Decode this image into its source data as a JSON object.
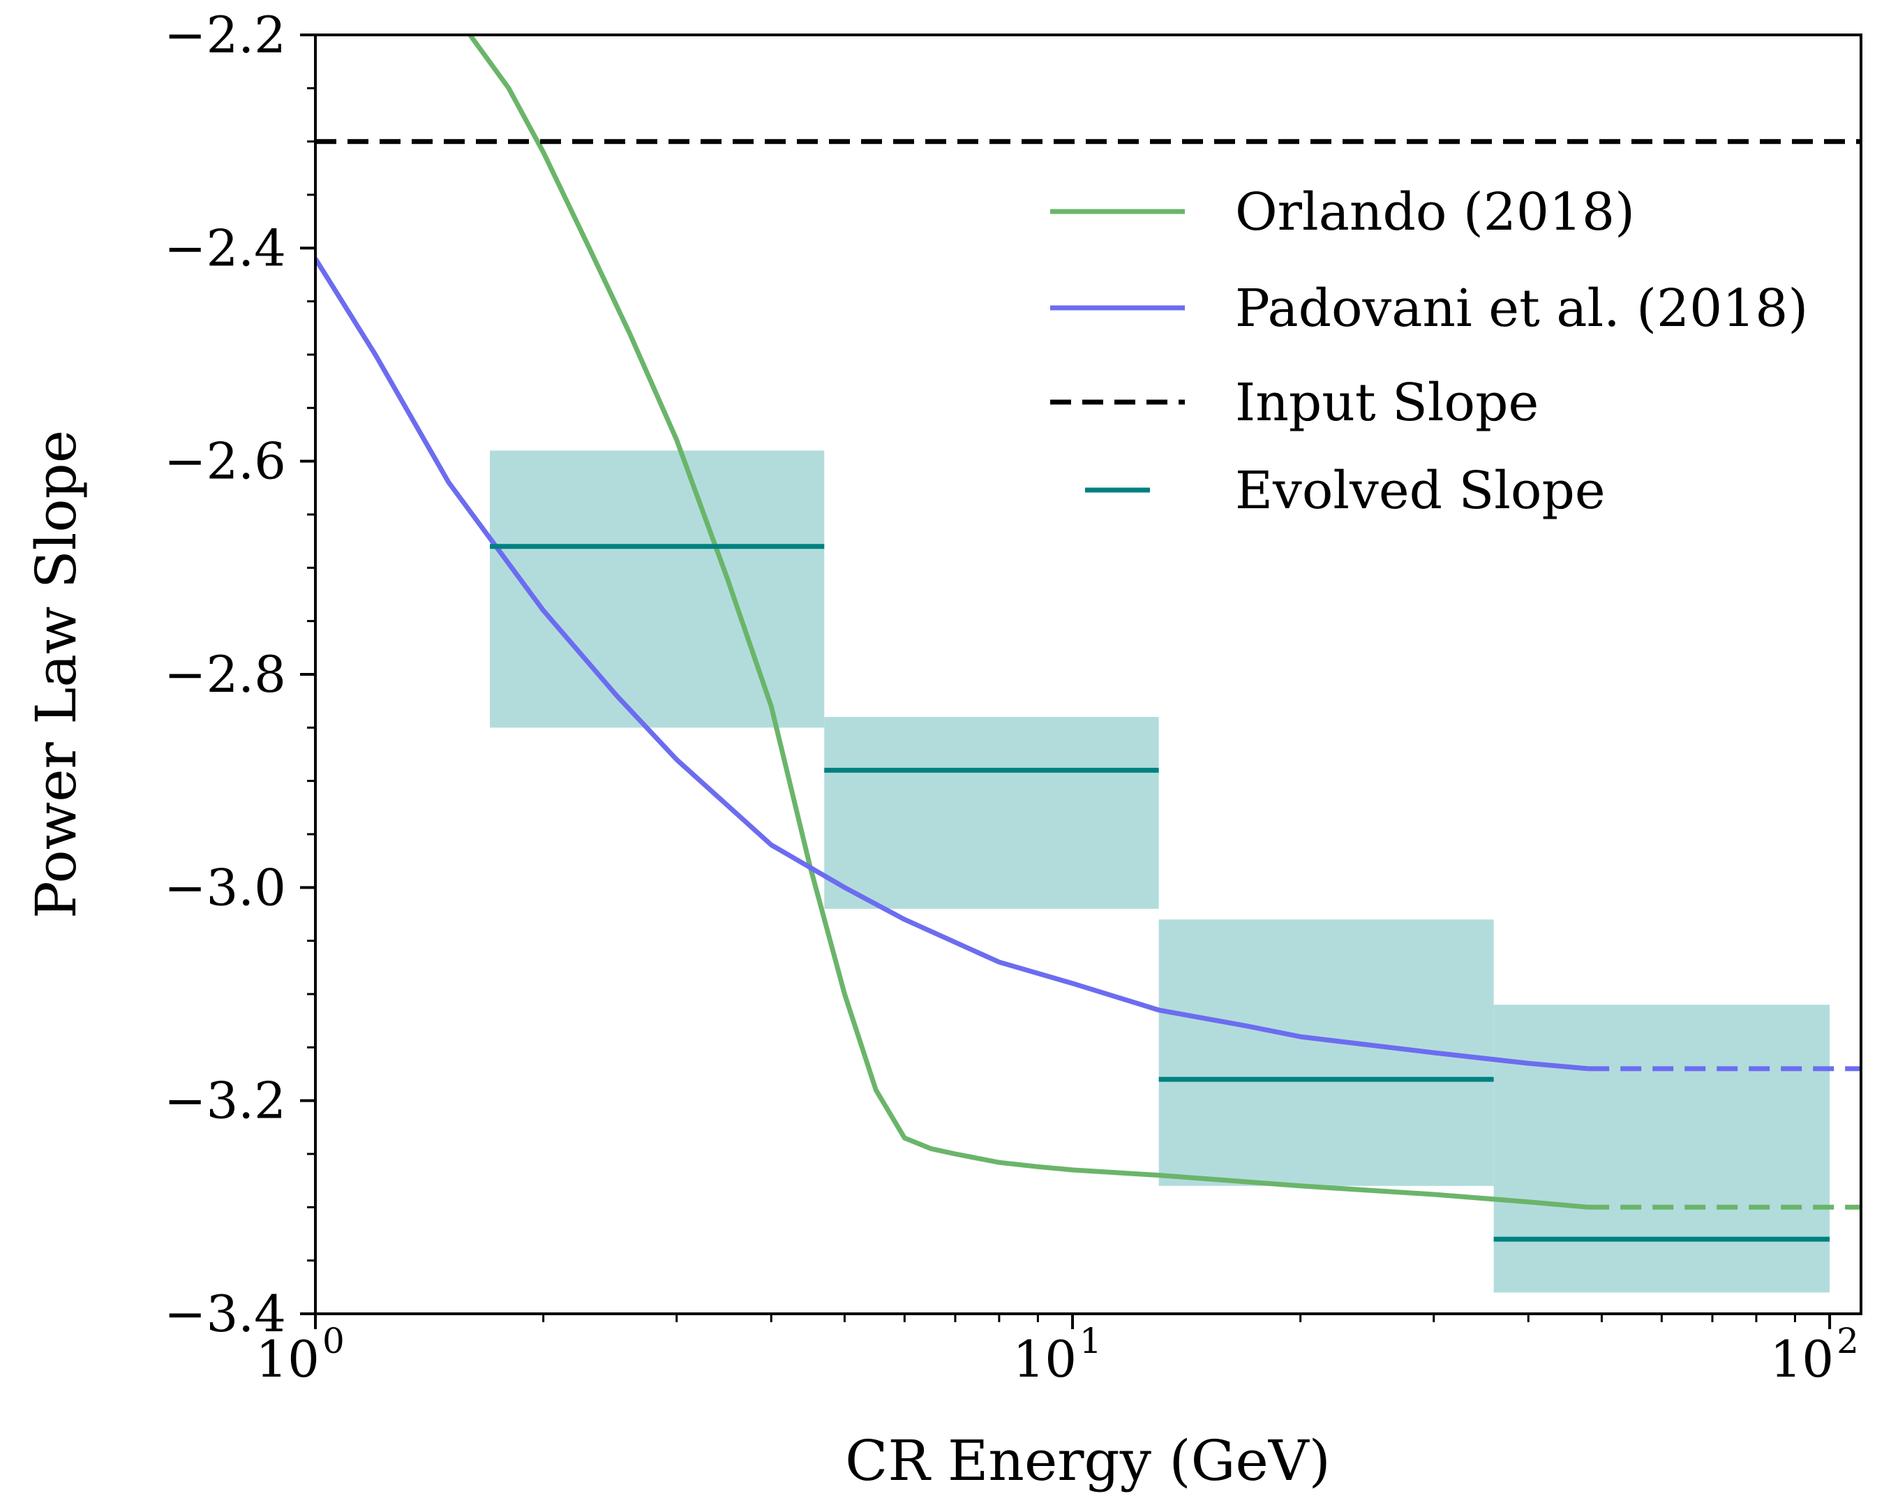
{
  "chart_data": {
    "type": "line",
    "xlabel": "CR Energy (GeV)",
    "ylabel": "Power Law Slope",
    "xscale": "log",
    "xlim": [
      1,
      110
    ],
    "ylim": [
      -3.4,
      -2.2
    ],
    "grid": false,
    "legend_position": "top-right",
    "x_ticks": [
      {
        "value": 1,
        "base": "10",
        "exp": "0"
      },
      {
        "value": 10,
        "base": "10",
        "exp": "1"
      },
      {
        "value": 100,
        "base": "10",
        "exp": "2"
      }
    ],
    "y_ticks": [
      {
        "value": -2.2,
        "label": "−2.2"
      },
      {
        "value": -2.4,
        "label": "−2.4"
      },
      {
        "value": -2.6,
        "label": "−2.6"
      },
      {
        "value": -2.8,
        "label": "−2.8"
      },
      {
        "value": -3.0,
        "label": "−3.0"
      },
      {
        "value": -3.2,
        "label": "−3.2"
      },
      {
        "value": -3.4,
        "label": "−3.4"
      }
    ],
    "legend": [
      {
        "label": "Orlando (2018)",
        "color": "#6ab56a",
        "style": "solid"
      },
      {
        "label": "Padovani et al. (2018)",
        "color": "#6c6cf0",
        "style": "solid"
      },
      {
        "label": "Input Slope",
        "color": "#000000",
        "style": "dashed"
      },
      {
        "label": "Evolved Slope",
        "color": "#008080",
        "style": "solid-short"
      }
    ],
    "series": [
      {
        "name": "Orlando (2018)",
        "color": "#6ab56a",
        "x": [
          1.6,
          1.8,
          2.0,
          2.3,
          2.6,
          3.0,
          3.5,
          4.0,
          4.5,
          5.0,
          5.5,
          6.0,
          6.5,
          7.0,
          8.0,
          9.0,
          10,
          13,
          20,
          30,
          40,
          48
        ],
        "y": [
          -2.2,
          -2.25,
          -2.31,
          -2.4,
          -2.48,
          -2.58,
          -2.71,
          -2.83,
          -2.98,
          -3.1,
          -3.19,
          -3.235,
          -3.245,
          -3.25,
          -3.258,
          -3.262,
          -3.265,
          -3.27,
          -3.28,
          -3.288,
          -3.295,
          -3.3
        ],
        "extension": {
          "x": [
            48,
            110
          ],
          "y": [
            -3.3,
            -3.3
          ],
          "style": "dashed"
        }
      },
      {
        "name": "Padovani et al. (2018)",
        "color": "#6c6cf0",
        "x": [
          1.0,
          1.2,
          1.5,
          2.0,
          2.5,
          3.0,
          4.0,
          5.0,
          6.0,
          8.0,
          10,
          13,
          17,
          20,
          30,
          40,
          48
        ],
        "y": [
          -2.41,
          -2.5,
          -2.62,
          -2.74,
          -2.82,
          -2.88,
          -2.96,
          -3.0,
          -3.03,
          -3.07,
          -3.09,
          -3.115,
          -3.13,
          -3.14,
          -3.155,
          -3.165,
          -3.17
        ],
        "extension": {
          "x": [
            48,
            110
          ],
          "y": [
            -3.17,
            -3.17
          ],
          "style": "dashed"
        }
      },
      {
        "name": "Input Slope",
        "color": "#000000",
        "x": [
          1,
          110
        ],
        "y": [
          -2.3,
          -2.3
        ],
        "style": "dashed"
      }
    ],
    "evolved_bins": [
      {
        "x_range": [
          1.7,
          4.7
        ],
        "value": -2.68,
        "band": [
          -2.85,
          -2.59
        ]
      },
      {
        "x_range": [
          4.7,
          13.0
        ],
        "value": -2.89,
        "band": [
          -3.02,
          -2.84
        ]
      },
      {
        "x_range": [
          13.0,
          36.0
        ],
        "value": -3.18,
        "band": [
          -3.28,
          -3.03
        ]
      },
      {
        "x_range": [
          36.0,
          100.0
        ],
        "value": -3.33,
        "band": [
          -3.38,
          -3.11
        ]
      }
    ],
    "evolved_color": "#008080",
    "band_color": "#b2dcdc"
  }
}
